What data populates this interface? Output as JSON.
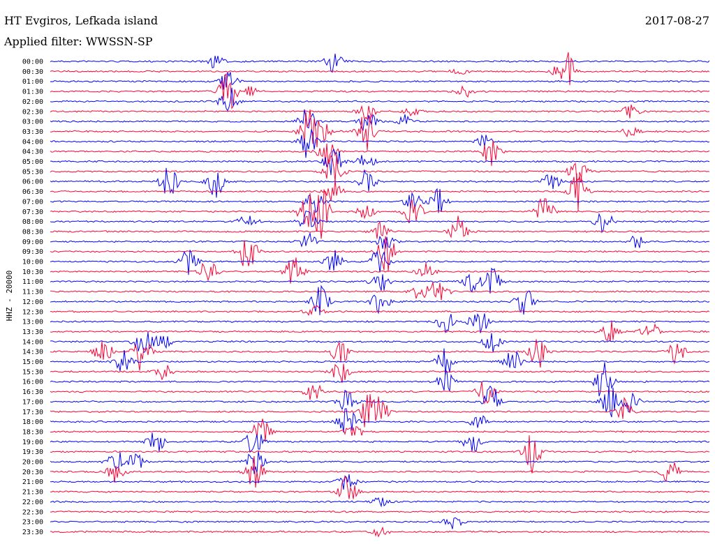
{
  "header": {
    "station": "HT Evgiros, Lefkada island",
    "date": "2017-08-27",
    "filter": "Applied filter: WWSSN-SP"
  },
  "chart_data": {
    "type": "line",
    "subtype": "helicorder",
    "title": "HT Evgiros, Lefkada island",
    "date": "2017-08-27",
    "filter": "WWSSN-SP",
    "ylabel": "HHZ - 20000",
    "colors": {
      "even_row": "#0000ff",
      "odd_row": "#ff0033"
    },
    "grid": false,
    "traces": [
      {
        "label": "00:00",
        "events": [
          [
            0.25,
            0.6
          ],
          [
            0.43,
            1.0
          ]
        ]
      },
      {
        "label": "00:30",
        "events": [
          [
            0.78,
            2.5
          ],
          [
            0.62,
            0.3
          ]
        ]
      },
      {
        "label": "01:00",
        "events": [
          [
            0.27,
            1.2
          ]
        ]
      },
      {
        "label": "01:30",
        "events": [
          [
            0.27,
            2.0
          ],
          [
            0.3,
            0.5
          ],
          [
            0.63,
            0.5
          ]
        ]
      },
      {
        "label": "02:00",
        "events": [
          [
            0.27,
            1.5
          ]
        ]
      },
      {
        "label": "02:30",
        "events": [
          [
            0.48,
            0.8
          ],
          [
            0.55,
            0.4
          ],
          [
            0.88,
            0.6
          ]
        ]
      },
      {
        "label": "03:00",
        "events": [
          [
            0.39,
            1.2
          ],
          [
            0.48,
            1.0
          ],
          [
            0.54,
            0.6
          ]
        ]
      },
      {
        "label": "03:30",
        "events": [
          [
            0.39,
            2.0
          ],
          [
            0.41,
            1.4
          ],
          [
            0.48,
            2.0
          ],
          [
            0.88,
            0.5
          ]
        ]
      },
      {
        "label": "04:00",
        "events": [
          [
            0.39,
            1.5
          ],
          [
            0.66,
            0.6
          ]
        ]
      },
      {
        "label": "04:30",
        "events": [
          [
            0.42,
            1.5
          ],
          [
            0.67,
            1.4
          ]
        ]
      },
      {
        "label": "05:00",
        "events": [
          [
            0.43,
            1.5
          ],
          [
            0.48,
            0.8
          ]
        ]
      },
      {
        "label": "05:30",
        "events": [
          [
            0.43,
            2.5
          ],
          [
            0.8,
            1.4
          ]
        ]
      },
      {
        "label": "06:00",
        "events": [
          [
            0.18,
            1.6
          ],
          [
            0.25,
            1.6
          ],
          [
            0.48,
            1.2
          ],
          [
            0.76,
            1.0
          ]
        ]
      },
      {
        "label": "06:30",
        "events": [
          [
            0.43,
            1.2
          ],
          [
            0.8,
            1.8
          ]
        ]
      },
      {
        "label": "07:00",
        "events": [
          [
            0.4,
            1.0
          ],
          [
            0.59,
            1.2
          ],
          [
            0.55,
            0.8
          ]
        ]
      },
      {
        "label": "07:30",
        "events": [
          [
            0.39,
            1.5
          ],
          [
            0.41,
            2.5
          ],
          [
            0.48,
            0.8
          ],
          [
            0.55,
            1.4
          ],
          [
            0.75,
            1.4
          ]
        ]
      },
      {
        "label": "08:00",
        "events": [
          [
            0.3,
            1.0
          ],
          [
            0.39,
            1.0
          ],
          [
            0.84,
            1.0
          ]
        ]
      },
      {
        "label": "08:30",
        "events": [
          [
            0.62,
            1.4
          ],
          [
            0.5,
            0.8
          ]
        ]
      },
      {
        "label": "09:00",
        "events": [
          [
            0.39,
            0.8
          ],
          [
            0.51,
            0.8
          ],
          [
            0.89,
            0.6
          ]
        ]
      },
      {
        "label": "09:30",
        "events": [
          [
            0.3,
            2.0
          ],
          [
            0.51,
            1.8
          ]
        ]
      },
      {
        "label": "10:00",
        "events": [
          [
            0.21,
            1.4
          ],
          [
            0.43,
            1.0
          ],
          [
            0.5,
            1.4
          ]
        ]
      },
      {
        "label": "10:30",
        "events": [
          [
            0.24,
            1.6
          ],
          [
            0.37,
            1.5
          ],
          [
            0.57,
            0.8
          ]
        ]
      },
      {
        "label": "11:00",
        "events": [
          [
            0.5,
            1.0
          ],
          [
            0.64,
            1.0
          ],
          [
            0.67,
            1.2
          ]
        ]
      },
      {
        "label": "11:30",
        "events": [
          [
            0.56,
            0.8
          ],
          [
            0.59,
            1.4
          ]
        ]
      },
      {
        "label": "12:00",
        "events": [
          [
            0.41,
            1.4
          ],
          [
            0.5,
            1.4
          ],
          [
            0.72,
            1.5
          ]
        ]
      },
      {
        "label": "12:30",
        "events": [
          [
            0.4,
            0.6
          ]
        ]
      },
      {
        "label": "13:00",
        "events": [
          [
            0.6,
            1.0
          ],
          [
            0.65,
            1.4
          ]
        ]
      },
      {
        "label": "13:30",
        "events": [
          [
            0.85,
            1.0
          ],
          [
            0.91,
            1.0
          ]
        ]
      },
      {
        "label": "14:00",
        "events": [
          [
            0.14,
            1.2
          ],
          [
            0.17,
            0.8
          ],
          [
            0.67,
            1.0
          ]
        ]
      },
      {
        "label": "14:30",
        "events": [
          [
            0.08,
            1.2
          ],
          [
            0.14,
            2.0
          ],
          [
            0.44,
            1.2
          ],
          [
            0.74,
            1.5
          ],
          [
            0.95,
            1.2
          ]
        ]
      },
      {
        "label": "15:00",
        "events": [
          [
            0.11,
            1.0
          ],
          [
            0.6,
            1.4
          ],
          [
            0.7,
            1.2
          ]
        ]
      },
      {
        "label": "15:30",
        "events": [
          [
            0.17,
            0.8
          ],
          [
            0.44,
            1.0
          ]
        ]
      },
      {
        "label": "16:00",
        "events": [
          [
            0.6,
            1.0
          ],
          [
            0.84,
            2.0
          ]
        ]
      },
      {
        "label": "16:30",
        "events": [
          [
            0.4,
            1.0
          ],
          [
            0.66,
            1.2
          ]
        ]
      },
      {
        "label": "17:00",
        "events": [
          [
            0.45,
            1.2
          ],
          [
            0.67,
            1.5
          ],
          [
            0.85,
            1.5
          ],
          [
            0.88,
            1.0
          ]
        ]
      },
      {
        "label": "17:30",
        "events": [
          [
            0.48,
            1.5
          ],
          [
            0.5,
            1.2
          ],
          [
            0.87,
            1.2
          ]
        ]
      },
      {
        "label": "18:00",
        "events": [
          [
            0.45,
            1.4
          ],
          [
            0.65,
            0.8
          ]
        ]
      },
      {
        "label": "18:30",
        "events": [
          [
            0.32,
            1.2
          ],
          [
            0.46,
            0.8
          ]
        ]
      },
      {
        "label": "19:00",
        "events": [
          [
            0.16,
            1.0
          ],
          [
            0.31,
            1.4
          ],
          [
            0.64,
            1.0
          ]
        ]
      },
      {
        "label": "19:30",
        "events": [
          [
            0.73,
            2.0
          ]
        ]
      },
      {
        "label": "20:00",
        "events": [
          [
            0.1,
            1.0
          ],
          [
            0.13,
            0.8
          ],
          [
            0.31,
            1.2
          ]
        ]
      },
      {
        "label": "20:30",
        "events": [
          [
            0.1,
            1.0
          ],
          [
            0.31,
            1.5
          ],
          [
            0.94,
            1.2
          ]
        ]
      },
      {
        "label": "21:00",
        "events": [
          [
            0.45,
            0.8
          ]
        ]
      },
      {
        "label": "21:30",
        "events": [
          [
            0.45,
            1.5
          ]
        ]
      },
      {
        "label": "22:00",
        "events": [
          [
            0.5,
            0.4
          ]
        ]
      },
      {
        "label": "22:30",
        "events": []
      },
      {
        "label": "23:00",
        "events": [
          [
            0.61,
            0.8
          ]
        ]
      },
      {
        "label": "23:30",
        "events": [
          [
            0.5,
            0.4
          ]
        ]
      }
    ]
  }
}
